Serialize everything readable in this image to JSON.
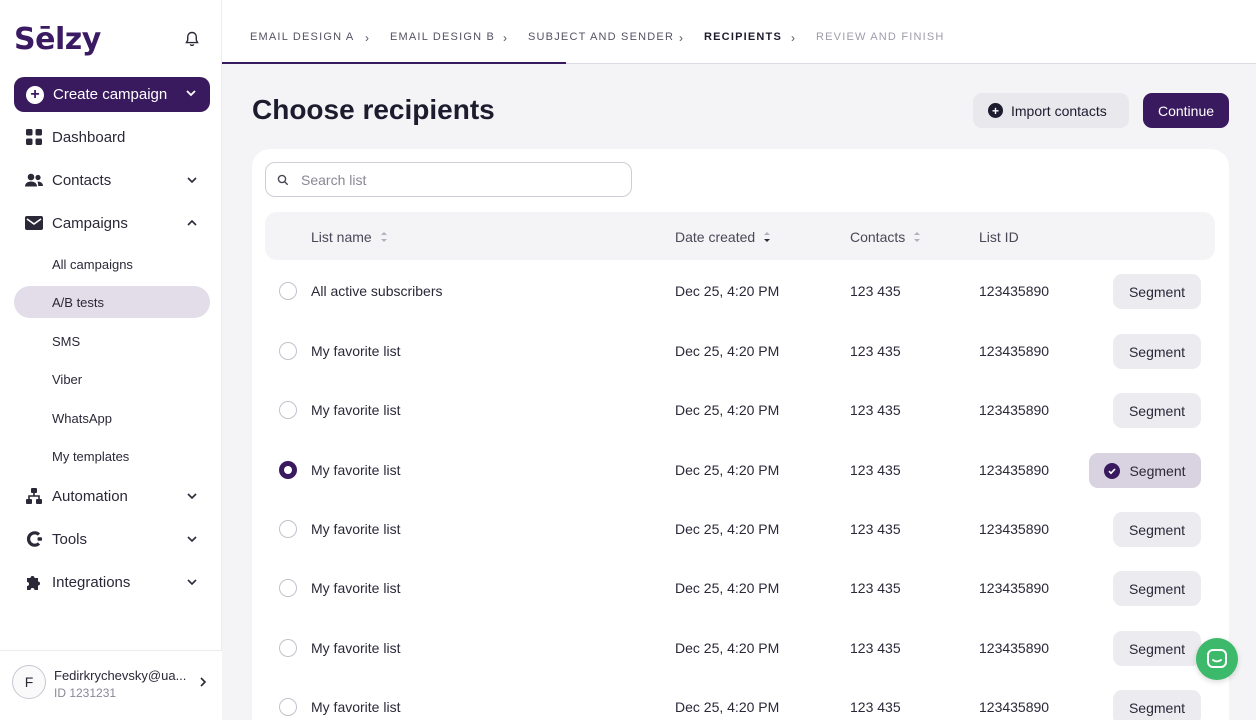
{
  "brand": {
    "name": "Sēlzy",
    "accent": "#3a1a5e",
    "chat_color": "#3cb96a"
  },
  "sidebar": {
    "create_label": "Create campaign",
    "items": [
      {
        "label": "Dashboard",
        "icon": "dashboard-icon"
      },
      {
        "label": "Contacts",
        "icon": "contacts-icon"
      },
      {
        "label": "Campaigns",
        "icon": "campaigns-icon"
      },
      {
        "label": "Automation",
        "icon": "automation-icon"
      },
      {
        "label": "Tools",
        "icon": "tools-icon"
      },
      {
        "label": "Integrations",
        "icon": "integrations-icon"
      }
    ],
    "campaign_subitems": [
      "All campaigns",
      "A/B tests",
      "SMS",
      "Viber",
      "WhatsApp",
      "My templates"
    ],
    "active_subitem": "A/B tests"
  },
  "user": {
    "initial": "F",
    "email": "Fedirkrychevsky@ua...",
    "id_label": "ID 1231231"
  },
  "stepper": {
    "steps": [
      "Email design A",
      "Email design B",
      "Subject and sender",
      "Recipients",
      "Review and finish"
    ],
    "active": "Recipients"
  },
  "page": {
    "title": "Choose recipients",
    "import_label": "Import contacts",
    "continue_label": "Continue",
    "search_placeholder": "Search list"
  },
  "table": {
    "headers": {
      "name": "List name",
      "date": "Date created",
      "contacts": "Contacts",
      "id": "List ID"
    },
    "segment_label": "Segment",
    "rows": [
      {
        "name": "All active subscribers",
        "date": "Dec 25, 4:20 PM",
        "contacts": "123 435",
        "id": "123435890",
        "selected": false
      },
      {
        "name": "My favorite list",
        "date": "Dec 25, 4:20 PM",
        "contacts": "123 435",
        "id": "123435890",
        "selected": false
      },
      {
        "name": "My favorite list",
        "date": "Dec 25, 4:20 PM",
        "contacts": "123 435",
        "id": "123435890",
        "selected": false
      },
      {
        "name": "My favorite list",
        "date": "Dec 25, 4:20 PM",
        "contacts": "123 435",
        "id": "123435890",
        "selected": true
      },
      {
        "name": "My favorite list",
        "date": "Dec 25, 4:20 PM",
        "contacts": "123 435",
        "id": "123435890",
        "selected": false
      },
      {
        "name": "My favorite list",
        "date": "Dec 25, 4:20 PM",
        "contacts": "123 435",
        "id": "123435890",
        "selected": false
      },
      {
        "name": "My favorite list",
        "date": "Dec 25, 4:20 PM",
        "contacts": "123 435",
        "id": "123435890",
        "selected": false
      },
      {
        "name": "My favorite list",
        "date": "Dec 25, 4:20 PM",
        "contacts": "123 435",
        "id": "123435890",
        "selected": false
      }
    ]
  }
}
